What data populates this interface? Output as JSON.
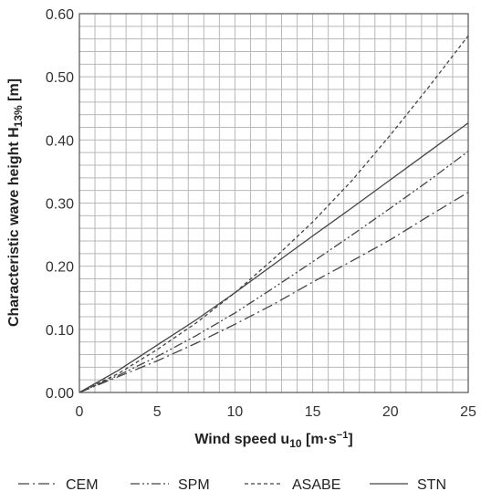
{
  "chart_data": {
    "type": "line",
    "title": "",
    "xlabel": "Wind speed u",
    "xlabel_sub": "10",
    "xlabel_unit": " [m·s",
    "xlabel_sup": "−1",
    "xlabel_end": "]",
    "ylabel": "Characteristic wave height H",
    "ylabel_sub": "13%",
    "ylabel_unit": " [m]",
    "xlim": [
      0,
      25
    ],
    "ylim": [
      0,
      0.6
    ],
    "x_ticks": [
      "0",
      "5",
      "10",
      "15",
      "20",
      "25"
    ],
    "y_ticks": [
      "0.00",
      "0.10",
      "0.20",
      "0.30",
      "0.40",
      "0.50",
      "0.60"
    ],
    "grid": true,
    "legend_position": "bottom",
    "x": [
      0,
      2.5,
      5,
      7.5,
      10,
      12.5,
      15,
      17.5,
      20,
      22.5,
      25
    ],
    "series": [
      {
        "name": "CEM",
        "values": [
          0,
          0.025,
          0.05,
          0.078,
          0.108,
          0.14,
          0.175,
          0.208,
          0.242,
          0.28,
          0.317
        ]
      },
      {
        "name": "SPM",
        "values": [
          0,
          0.027,
          0.057,
          0.09,
          0.126,
          0.166,
          0.207,
          0.249,
          0.292,
          0.336,
          0.382
        ]
      },
      {
        "name": "ASABE",
        "values": [
          0,
          0.03,
          0.068,
          0.11,
          0.158,
          0.212,
          0.27,
          0.335,
          0.408,
          0.485,
          0.565
        ]
      },
      {
        "name": "STN",
        "values": [
          0,
          0.035,
          0.075,
          0.115,
          0.158,
          0.203,
          0.248,
          0.292,
          0.337,
          0.382,
          0.427
        ]
      }
    ],
    "styles": {
      "CEM": {
        "color": "#444444",
        "dash": "12,4,2,4"
      },
      "SPM": {
        "color": "#444444",
        "dash": "10,3,2,3,2,3"
      },
      "ASABE": {
        "color": "#444444",
        "dash": "4,3"
      },
      "STN": {
        "color": "#444444",
        "dash": ""
      }
    }
  }
}
